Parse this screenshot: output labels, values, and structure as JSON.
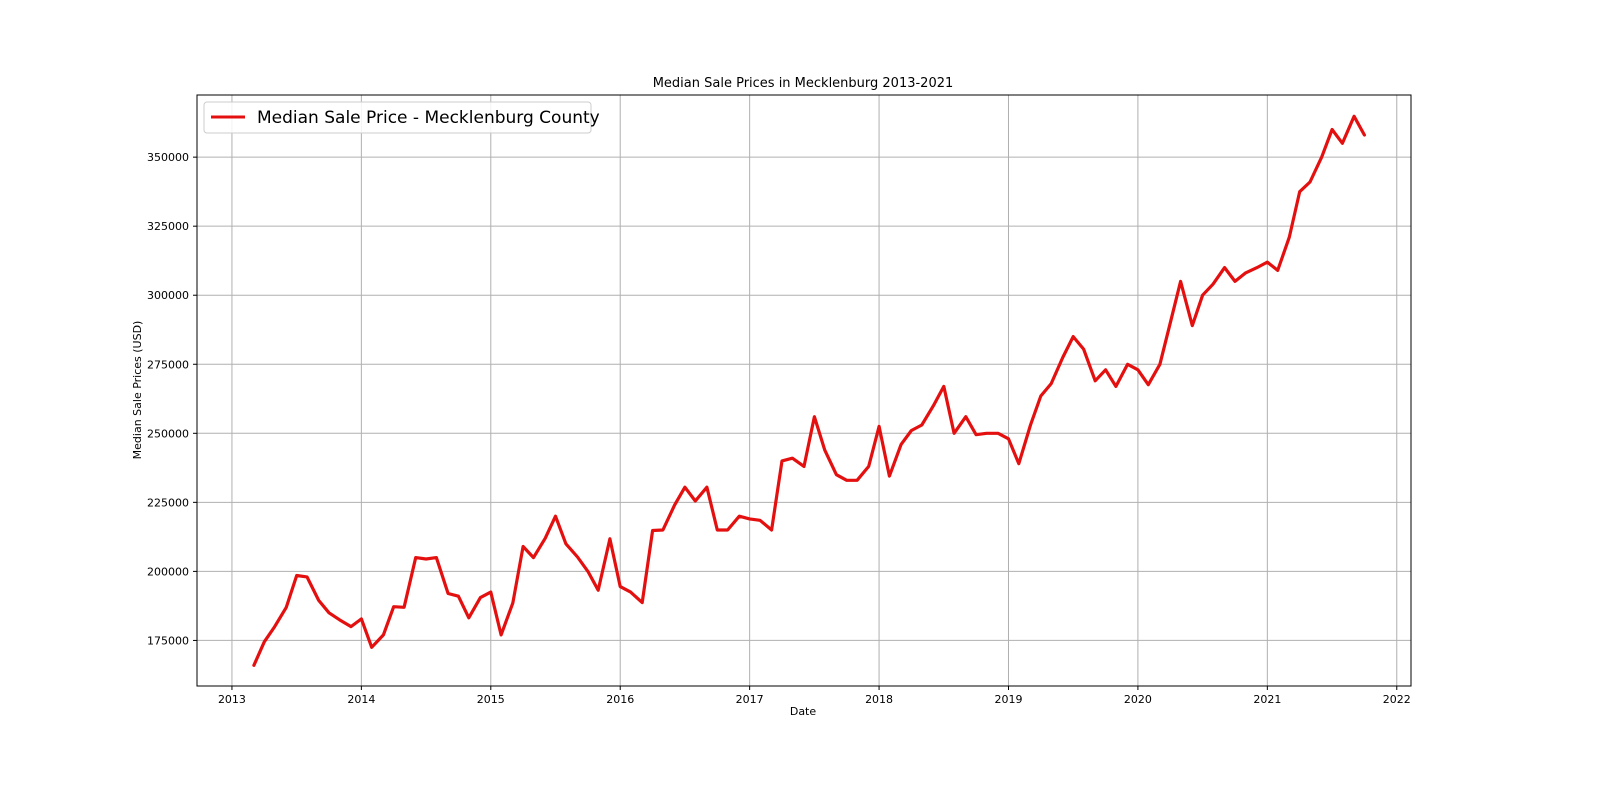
{
  "chart_data": {
    "type": "line",
    "title": "Median Sale Prices in Mecklenburg 2013-2021",
    "xlabel": "Date",
    "ylabel": "Median Sale Prices (USD)",
    "xlim": [
      2012.73,
      2022.11
    ],
    "ylim": [
      158500,
      372500
    ],
    "x_ticks": [
      "2013",
      "2014",
      "2015",
      "2016",
      "2017",
      "2018",
      "2019",
      "2020",
      "2021",
      "2022"
    ],
    "y_ticks": [
      "175000",
      "200000",
      "225000",
      "250000",
      "275000",
      "300000",
      "325000",
      "350000"
    ],
    "grid": true,
    "legend_position": "upper-left",
    "series": [
      {
        "name": "Median Sale Price - Mecklenburg County",
        "color": "#e41010",
        "x": [
          2013.17,
          2013.25,
          2013.33,
          2013.42,
          2013.5,
          2013.58,
          2013.67,
          2013.75,
          2013.83,
          2013.92,
          2014.0,
          2014.08,
          2014.17,
          2014.25,
          2014.33,
          2014.42,
          2014.5,
          2014.58,
          2014.67,
          2014.75,
          2014.83,
          2014.92,
          2015.0,
          2015.08,
          2015.17,
          2015.25,
          2015.33,
          2015.42,
          2015.5,
          2015.58,
          2015.67,
          2015.75,
          2015.83,
          2015.92,
          2016.0,
          2016.08,
          2016.17,
          2016.25,
          2016.33,
          2016.42,
          2016.5,
          2016.58,
          2016.67,
          2016.75,
          2016.83,
          2016.92,
          2017.0,
          2017.08,
          2017.17,
          2017.25,
          2017.33,
          2017.42,
          2017.5,
          2017.58,
          2017.67,
          2017.75,
          2017.83,
          2017.92,
          2018.0,
          2018.08,
          2018.17,
          2018.25,
          2018.33,
          2018.42,
          2018.5,
          2018.58,
          2018.67,
          2018.75,
          2018.83,
          2018.92,
          2019.0,
          2019.08,
          2019.17,
          2019.25,
          2019.33,
          2019.42,
          2019.5,
          2019.58,
          2019.67,
          2019.75,
          2019.83,
          2019.92,
          2020.0,
          2020.08,
          2020.17,
          2020.25,
          2020.33,
          2020.42,
          2020.5,
          2020.58,
          2020.67,
          2020.75,
          2020.83,
          2020.92,
          2021.0,
          2021.08,
          2021.17,
          2021.25,
          2021.33,
          2021.42,
          2021.5,
          2021.58,
          2021.67,
          2021.75
        ],
        "values": [
          166000,
          174500,
          180000,
          187000,
          198500,
          198000,
          189500,
          185000,
          182500,
          180000,
          182800,
          172500,
          177000,
          187200,
          187000,
          205000,
          204500,
          205000,
          192000,
          191000,
          183200,
          190500,
          192500,
          177000,
          188500,
          209000,
          205000,
          212000,
          220000,
          210000,
          205200,
          200000,
          193200,
          211800,
          194500,
          192500,
          188700,
          214800,
          215000,
          224000,
          230500,
          225500,
          230500,
          215000,
          215000,
          220000,
          219000,
          218500,
          215000,
          240000,
          241000,
          238000,
          256000,
          244000,
          235000,
          233000,
          233000,
          238000,
          252500,
          234500,
          246000,
          251000,
          253000,
          260000,
          267000,
          250000,
          256000,
          249500,
          250000,
          250000,
          248000,
          239000,
          253000,
          263500,
          268000,
          277500,
          285000,
          280500,
          269000,
          273000,
          267000,
          275000,
          273000,
          267600,
          275000,
          290000,
          305000,
          289000,
          300000,
          304000,
          310000,
          305000,
          308000,
          310000,
          312000,
          309000,
          321000,
          337500,
          341000,
          350000,
          360000,
          355000,
          364800,
          358000
        ]
      }
    ]
  }
}
